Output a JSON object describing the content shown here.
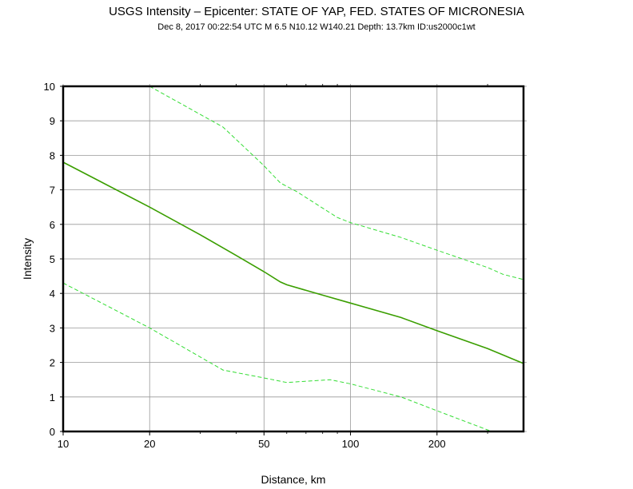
{
  "chart_data": {
    "type": "line",
    "title": "USGS Intensity –  Epicenter: STATE OF YAP, FED. STATES OF MICRONESIA",
    "subtitle": "Dec  8, 2017 00:22:54 UTC   M 6.5   N10.12 W140.21   Depth: 13.7km   ID:us2000c1wt",
    "xlabel": "Distance, km",
    "ylabel": "Intensity",
    "xscale": "log",
    "xlim": [
      10,
      400
    ],
    "ylim": [
      0,
      10
    ],
    "grid": true,
    "x_ticks": [
      10,
      20,
      50,
      100,
      200
    ],
    "x_tick_labels": [
      "10",
      "20",
      "50",
      "100",
      "200"
    ],
    "x_minor_ticks": [
      30,
      40,
      60,
      70,
      80,
      90,
      300
    ],
    "y_ticks": [
      0,
      1,
      2,
      3,
      4,
      5,
      6,
      7,
      8,
      9,
      10
    ],
    "y_tick_labels": [
      "0",
      "1",
      "2",
      "3",
      "4",
      "5",
      "6",
      "7",
      "8",
      "9",
      "10"
    ],
    "series": [
      {
        "style": "solid",
        "color": "#3a9e00",
        "x": [
          10,
          20,
          30,
          40,
          50,
          57,
          60,
          80,
          100,
          150,
          200,
          300,
          400
        ],
        "y": [
          7.8,
          6.5,
          5.7,
          5.1,
          4.63,
          4.33,
          4.25,
          3.95,
          3.72,
          3.3,
          2.92,
          2.4,
          1.97
        ]
      },
      {
        "style": "dashed",
        "color": "#33dd33",
        "x": [
          20,
          36,
          50,
          57,
          65,
          90,
          100,
          150,
          200,
          300,
          340,
          400
        ],
        "y": [
          10,
          8.82,
          7.7,
          7.2,
          6.95,
          6.2,
          6.05,
          5.62,
          5.25,
          4.75,
          4.55,
          4.4
        ]
      },
      {
        "style": "dashed",
        "color": "#33dd33",
        "x": [
          10,
          20,
          36,
          50,
          60,
          85,
          100,
          150,
          200,
          310
        ],
        "y": [
          4.3,
          3.0,
          1.78,
          1.55,
          1.42,
          1.5,
          1.38,
          1.0,
          0.6,
          0.0
        ]
      }
    ]
  }
}
